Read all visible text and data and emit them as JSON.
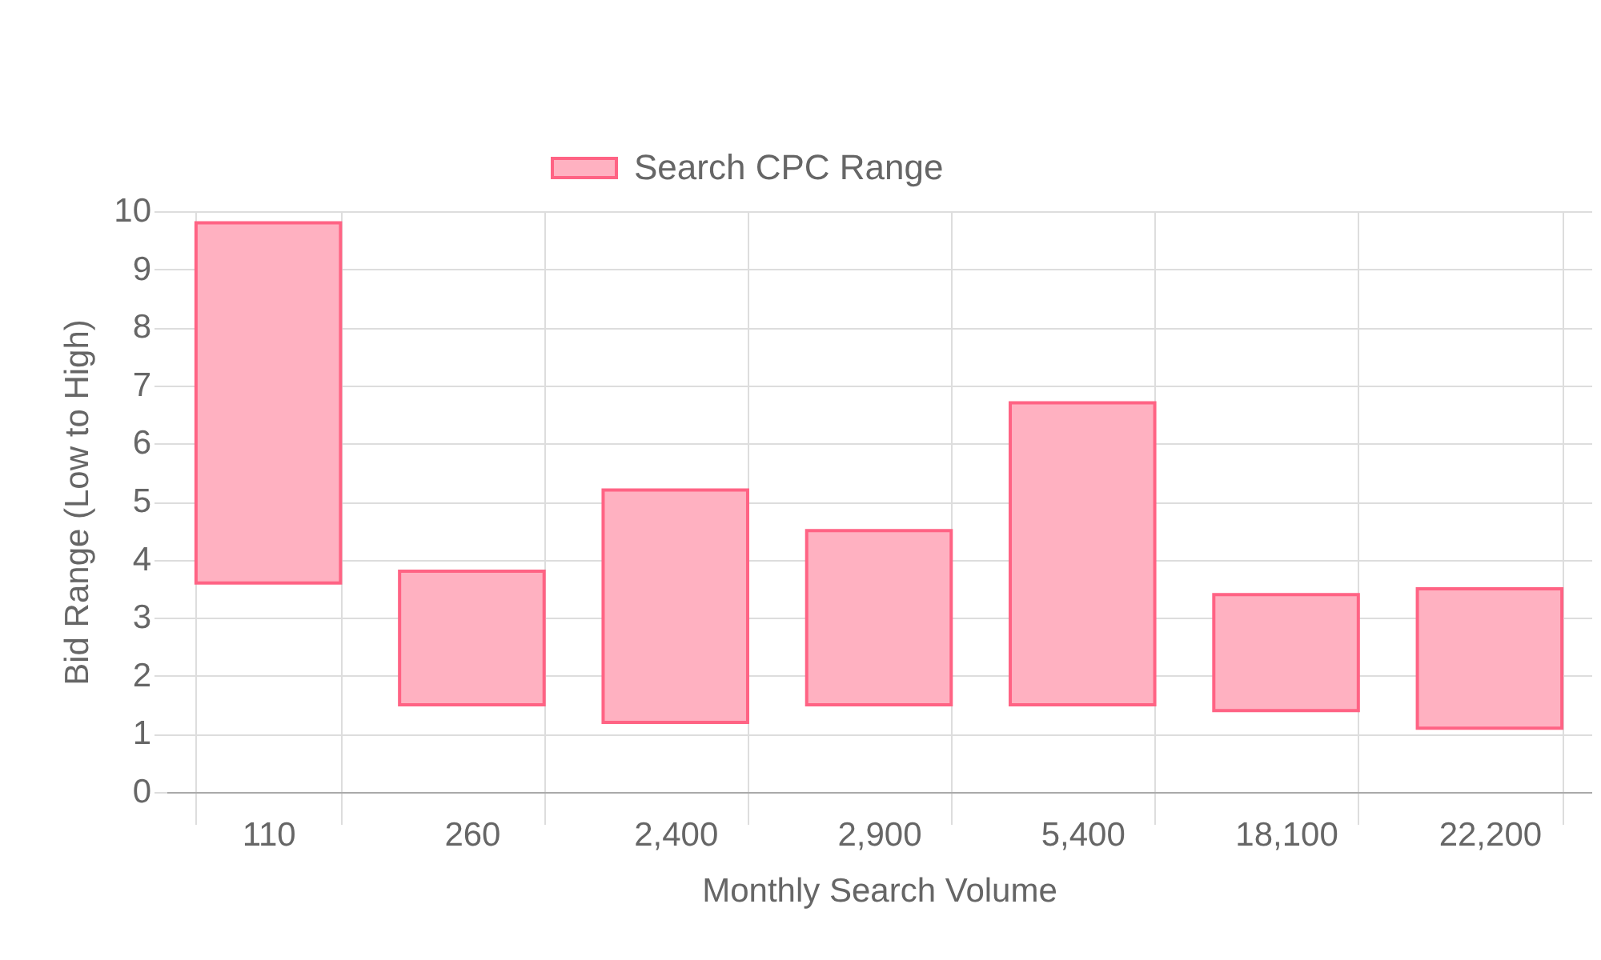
{
  "chart_data": {
    "type": "bar",
    "xlabel": "Monthly Search Volume",
    "ylabel": "Bid Range (Low to High)",
    "categories": [
      "110",
      "260",
      "2,400",
      "2,900",
      "5,400",
      "18,100",
      "22,200"
    ],
    "series": [
      {
        "name": "Search CPC Range",
        "color": "#ffb1c1",
        "values": [
          6.2,
          2.3,
          4.0,
          3.0,
          5.2,
          2.0,
          2.4
        ],
        "base": [
          3.6,
          1.5,
          1.2,
          1.5,
          1.5,
          1.4,
          1.1
        ]
      }
    ],
    "ylim": [
      0,
      10
    ],
    "yticks": [
      0,
      1,
      2,
      3,
      4,
      5,
      6,
      7,
      8,
      9,
      10
    ],
    "grid": true,
    "legend": "top"
  }
}
